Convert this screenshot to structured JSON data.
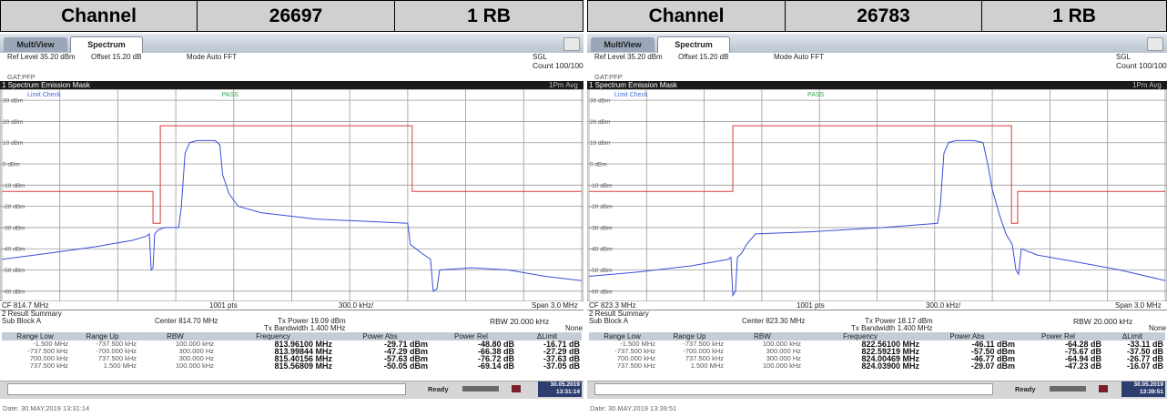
{
  "header": {
    "cells": [
      "Channel",
      "26697",
      "1 RB",
      "Channel",
      "26783",
      "1 RB"
    ]
  },
  "panels": [
    {
      "tabs": [
        "MultiView",
        "Spectrum"
      ],
      "ref_level": "Ref Level 35.20 dBm",
      "offset": "Offset 15.20 dB",
      "mode": "Mode Auto FFT",
      "sweep": "SGL",
      "count": "Count 100/100",
      "gate": "GAT:PFP",
      "window_title": "1 Spectrum Emission Mask",
      "trace_mode": "1Pm Avg",
      "limit_check": "Limit Check",
      "limit_result": "PASS",
      "chart": {
        "ylim": [
          -64.8,
          35.2
        ],
        "xlim": [
          813.2,
          816.2
        ],
        "yticks": [
          {
            "value": 30,
            "label": "30 dBm"
          },
          {
            "value": 20,
            "label": "20 dBm"
          },
          {
            "value": 10,
            "label": "10 dBm"
          },
          {
            "value": 0,
            "label": "0 dBm"
          },
          {
            "value": -10,
            "label": "-10 dBm"
          },
          {
            "value": -20,
            "label": "-20 dBm"
          },
          {
            "value": -30,
            "label": "-30 dBm"
          },
          {
            "value": -40,
            "label": "-40 dBm"
          },
          {
            "value": -50,
            "label": "-50 dBm"
          },
          {
            "value": -60,
            "label": "-60 dBm"
          }
        ],
        "xticks": [
          813.2,
          813.5,
          813.8,
          814.1,
          814.4,
          814.7,
          815,
          815.3,
          815.6,
          815.9,
          816.2
        ],
        "trace": {
          "color": "#3a4fd8",
          "x": [
            813.2,
            813.451,
            813.688,
            813.878,
            813.949,
            813.963,
            813.973,
            813.982,
            813.991,
            814.01,
            814.044,
            814.115,
            814.129,
            814.148,
            814.172,
            814.209,
            814.304,
            814.328,
            814.342,
            814.375,
            814.423,
            814.541,
            814.826,
            815.062,
            815.3,
            815.314,
            815.371,
            815.418,
            815.432,
            815.451,
            815.465,
            815.631,
            815.821,
            816.01,
            816.2
          ],
          "y": [
            -45,
            -42,
            -39,
            -36,
            -34,
            -33,
            -50,
            -49,
            -33,
            -31,
            -30,
            -30,
            -20,
            5,
            10,
            11,
            11,
            9,
            -5,
            -14,
            -20,
            -23,
            -26,
            -27,
            -28,
            -38,
            -42,
            -45,
            -60,
            -59,
            -50,
            -49,
            -50,
            -53,
            -55
          ]
        },
        "limit": {
          "color": "#e03a3a",
          "x": [
            813.2,
            813.982,
            813.982,
            814.02,
            814.02,
            815.323,
            815.323,
            816.2
          ],
          "y": [
            -13,
            -13,
            -28,
            -28,
            18,
            18,
            -13,
            -13
          ]
        }
      },
      "cf": "CF 814.7 MHz",
      "points": "1001 pts",
      "division": "300.0 kHz/",
      "span": "Span 3.0 MHz",
      "summary": {
        "title": "2 Result Summary",
        "sub_block": "Sub Block A",
        "center": "Center 814.70 MHz",
        "tx_power": "Tx Power 19.09 dBm",
        "tx_bandwidth": "Tx Bandwidth 1.400 MHz",
        "rbw": "RBW 20.000 kHz",
        "mode": "None",
        "columns": [
          "Range Low",
          "Range Up",
          "RBW",
          "Frequency",
          "Power Abs",
          "Power Rel",
          "ΔLimit"
        ],
        "rows": [
          [
            "-1.500 MHz",
            "-737.500 kHz",
            "100.000 kHz",
            "813.96100 MHz",
            "-29.71 dBm",
            "-48.80 dB",
            "-16.71 dB"
          ],
          [
            "-737.500 kHz",
            "-700.000 kHz",
            "300.000 Hz",
            "813.99844 MHz",
            "-47.29 dBm",
            "-66.38 dB",
            "-27.29 dB"
          ],
          [
            "700.000 kHz",
            "737.500 kHz",
            "300.000 Hz",
            "815.40156 MHz",
            "-57.63 dBm",
            "-76.72 dB",
            "-37.63 dB"
          ],
          [
            "737.500 kHz",
            "1.500 MHz",
            "100.000 kHz",
            "815.56809 MHz",
            "-50.05 dBm",
            "-69.14 dB",
            "-37.05 dB"
          ]
        ]
      },
      "status": {
        "state": "Ready",
        "date": "30.05.2019",
        "time": "13:31:14"
      },
      "footer_date": "Date: 30.MAY.2019 13:31:14"
    },
    {
      "tabs": [
        "MultiView",
        "Spectrum"
      ],
      "ref_level": "Ref Level 35.20 dBm",
      "offset": "Offset 15.20 dB",
      "mode": "Mode Auto FFT",
      "sweep": "SGL",
      "count": "Count 100/100",
      "gate": "GAT:PFP",
      "window_title": "1 Spectrum Emission Mask",
      "trace_mode": "1Pm Avg",
      "limit_check": "Limit Check",
      "limit_result": "PASS",
      "chart": {
        "ylim": [
          -64.8,
          35.2
        ],
        "xlim": [
          821.8,
          824.8
        ],
        "yticks": [
          {
            "value": 30,
            "label": "30 dBm"
          },
          {
            "value": 20,
            "label": "20 dBm"
          },
          {
            "value": 10,
            "label": "10 dBm"
          },
          {
            "value": 0,
            "label": "0 dBm"
          },
          {
            "value": -10,
            "label": "-10 dBm"
          },
          {
            "value": -20,
            "label": "-20 dBm"
          },
          {
            "value": -30,
            "label": "-30 dBm"
          },
          {
            "value": -40,
            "label": "-40 dBm"
          },
          {
            "value": -50,
            "label": "-50 dBm"
          },
          {
            "value": -60,
            "label": "-60 dBm"
          }
        ],
        "xticks": [
          821.8,
          822.1,
          822.4,
          822.7,
          823,
          823.3,
          823.6,
          823.9,
          824.2,
          824.5,
          824.8
        ],
        "trace": {
          "color": "#3a4fd8",
          "x": [
            821.8,
            822.051,
            822.336,
            822.525,
            822.539,
            822.549,
            822.563,
            822.573,
            822.596,
            822.62,
            822.667,
            822.952,
            823.331,
            823.615,
            823.629,
            823.648,
            823.672,
            823.71,
            823.805,
            823.852,
            823.876,
            823.9,
            823.937,
            823.971,
            824.004,
            824.023,
            824.037,
            824.051,
            824.136,
            824.326,
            824.563,
            824.8
          ],
          "y": [
            -53,
            -51,
            -48,
            -45,
            -44,
            -62,
            -60,
            -44,
            -42,
            -38,
            -33,
            -32,
            -30,
            -28,
            -20,
            5,
            10,
            11,
            11,
            10,
            0,
            -12,
            -24,
            -33,
            -38,
            -50,
            -52,
            -40,
            -43,
            -46,
            -50,
            -55
          ]
        },
        "limit": {
          "color": "#e03a3a",
          "x": [
            821.8,
            822.549,
            822.549,
            824,
            824,
            824.032,
            824.032,
            824.8
          ],
          "y": [
            -13,
            -13,
            18,
            18,
            -28,
            -28,
            -13,
            -13
          ]
        }
      },
      "cf": "CF 823.3 MHz",
      "points": "1001 pts",
      "division": "300.0 kHz/",
      "span": "Span 3.0 MHz",
      "summary": {
        "title": "2 Result Summary",
        "sub_block": "Sub Block A",
        "center": "Center 823.30 MHz",
        "tx_power": "Tx Power 18.17 dBm",
        "tx_bandwidth": "Tx Bandwidth 1.400 MHz",
        "rbw": "RBW 20.000 kHz",
        "mode": "None",
        "columns": [
          "Range Low",
          "Range Up",
          "RBW",
          "Frequency",
          "Power Abs",
          "Power Rel",
          "ΔLimit"
        ],
        "rows": [
          [
            "-1.500 MHz",
            "-737.500 kHz",
            "100.000 kHz",
            "822.56100 MHz",
            "-46.11 dBm",
            "-64.28 dB",
            "-33.11 dB"
          ],
          [
            "-737.500 kHz",
            "-700.000 kHz",
            "300.000 Hz",
            "822.59219 MHz",
            "-57.50 dBm",
            "-75.67 dB",
            "-37.50 dB"
          ],
          [
            "700.000 kHz",
            "737.500 kHz",
            "300.000 Hz",
            "824.00469 MHz",
            "-46.77 dBm",
            "-64.94 dB",
            "-26.77 dB"
          ],
          [
            "737.500 kHz",
            "1.500 MHz",
            "100.000 kHz",
            "824.03900 MHz",
            "-29.07 dBm",
            "-47.23 dB",
            "-16.07 dB"
          ]
        ]
      },
      "status": {
        "state": "Ready",
        "date": "30.05.2019",
        "time": "13:39:51"
      },
      "footer_date": "Date: 30.MAY.2019 13:39:51"
    }
  ]
}
